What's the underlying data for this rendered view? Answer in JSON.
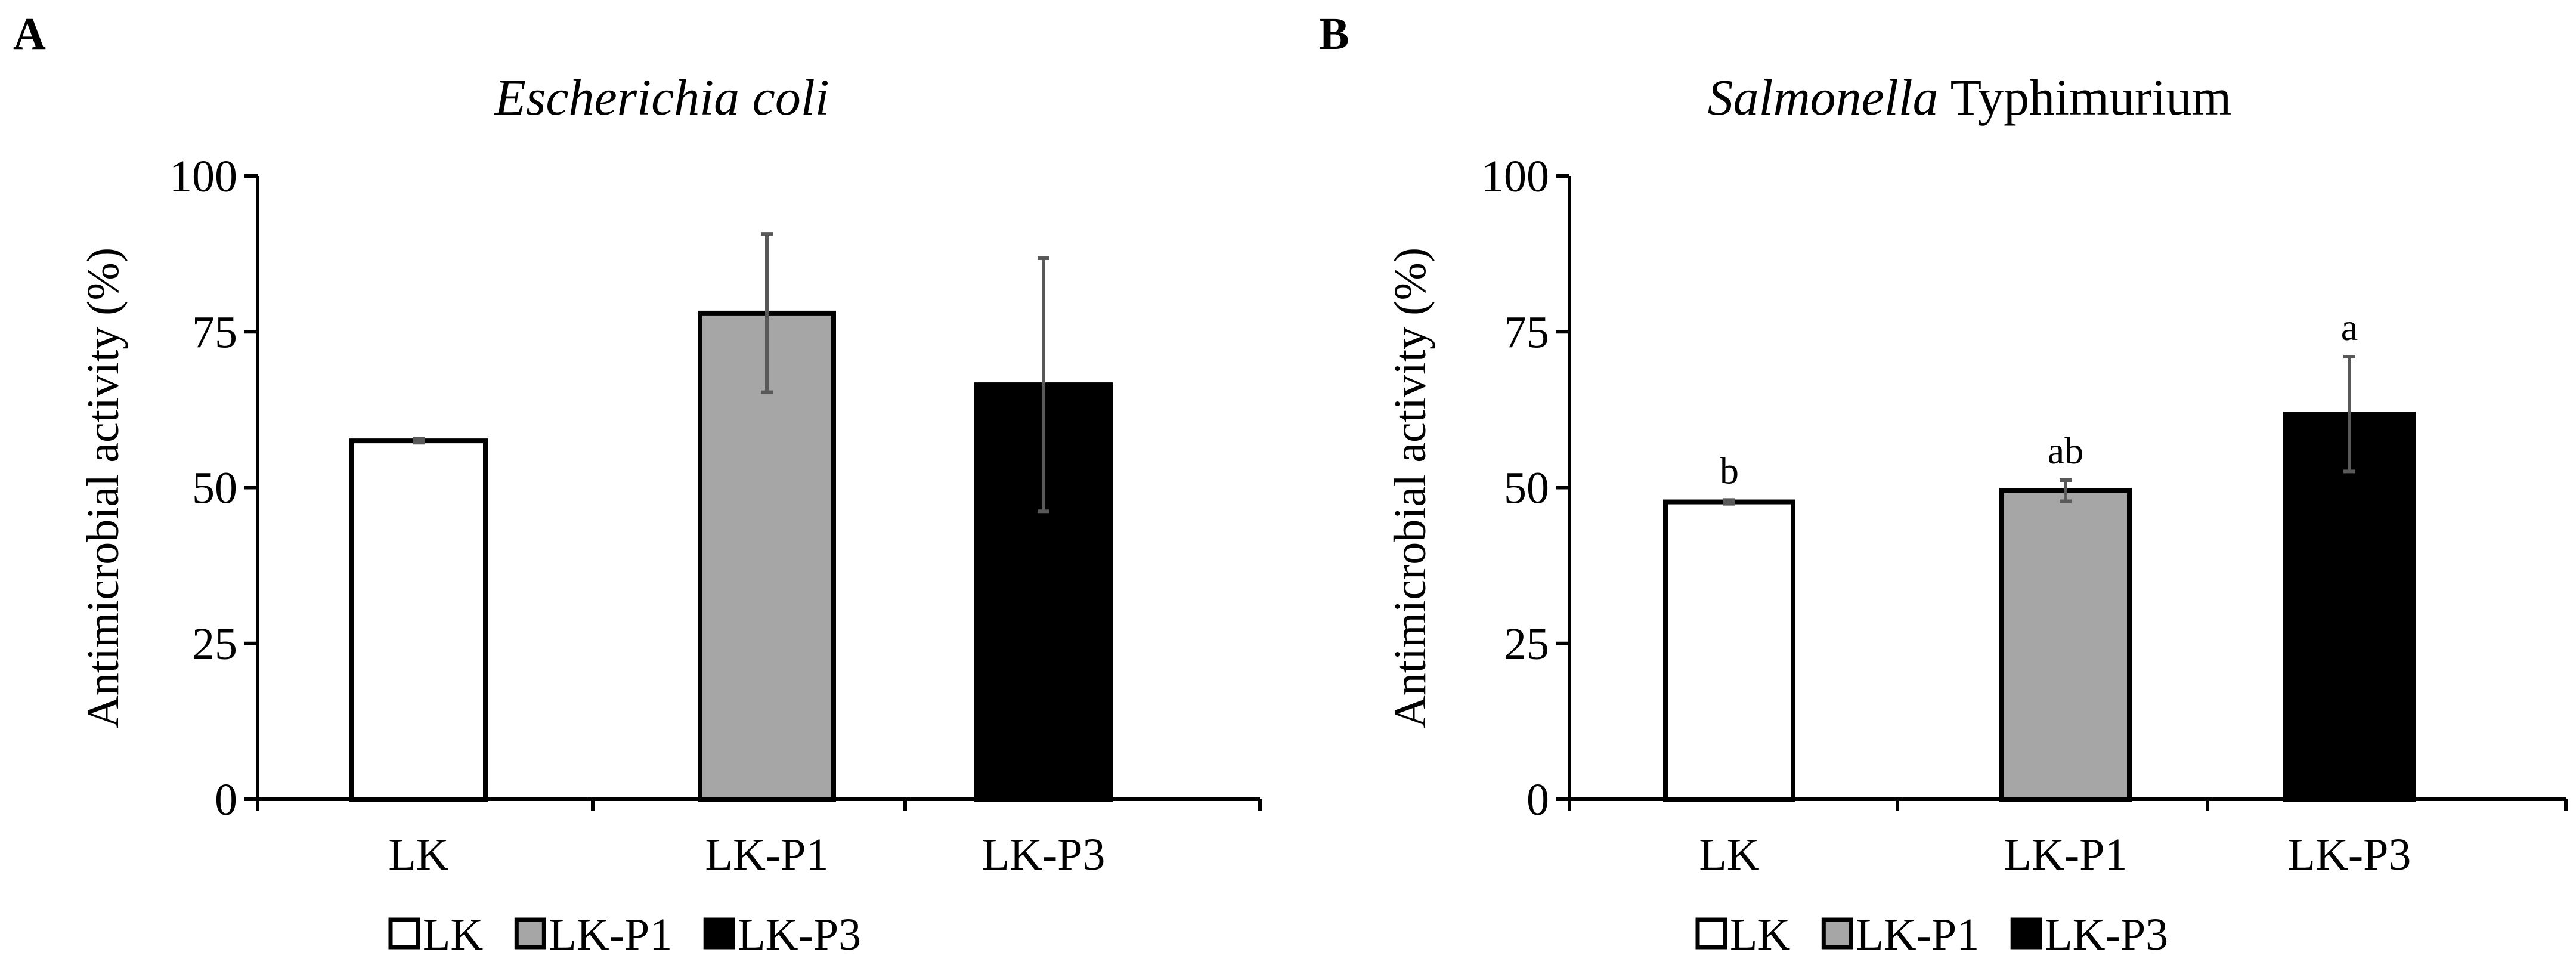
{
  "chart_data": [
    {
      "panel": "A",
      "type": "bar",
      "title_parts": [
        {
          "text": "Escherichia coli",
          "italic": true
        }
      ],
      "xlabel": "",
      "ylabel": "Antimicrobial activity (%)",
      "ylim": [
        0,
        100
      ],
      "yticks": [
        0,
        25,
        50,
        75,
        100
      ],
      "categories": [
        "LK",
        "LK-P1",
        "LK-P3"
      ],
      "values": [
        57.5,
        78,
        66.5
      ],
      "errors": [
        0.3,
        12.7,
        20.3
      ],
      "colors": [
        "#ffffff",
        "#a6a6a6",
        "#000000"
      ],
      "significance": [
        "",
        "",
        ""
      ],
      "legend": [
        "LK",
        "LK-P1",
        "LK-P3"
      ],
      "legend_position": "bottom",
      "grid": false
    },
    {
      "panel": "B",
      "type": "bar",
      "title_parts": [
        {
          "text": "Salmonella",
          "italic": true
        },
        {
          "text": " Typhimurium",
          "italic": false
        }
      ],
      "xlabel": "",
      "ylabel": "Antimicrobial activity (%)",
      "ylim": [
        0,
        100
      ],
      "yticks": [
        0,
        25,
        50,
        75,
        100
      ],
      "categories": [
        "LK",
        "LK-P1",
        "LK-P3"
      ],
      "values": [
        47.7,
        49.5,
        61.8
      ],
      "errors": [
        0.3,
        1.7,
        9.2
      ],
      "colors": [
        "#ffffff",
        "#a6a6a6",
        "#000000"
      ],
      "significance": [
        "b",
        "ab",
        "a"
      ],
      "legend": [
        "LK",
        "LK-P1",
        "LK-P3"
      ],
      "legend_position": "bottom",
      "grid": false
    }
  ]
}
